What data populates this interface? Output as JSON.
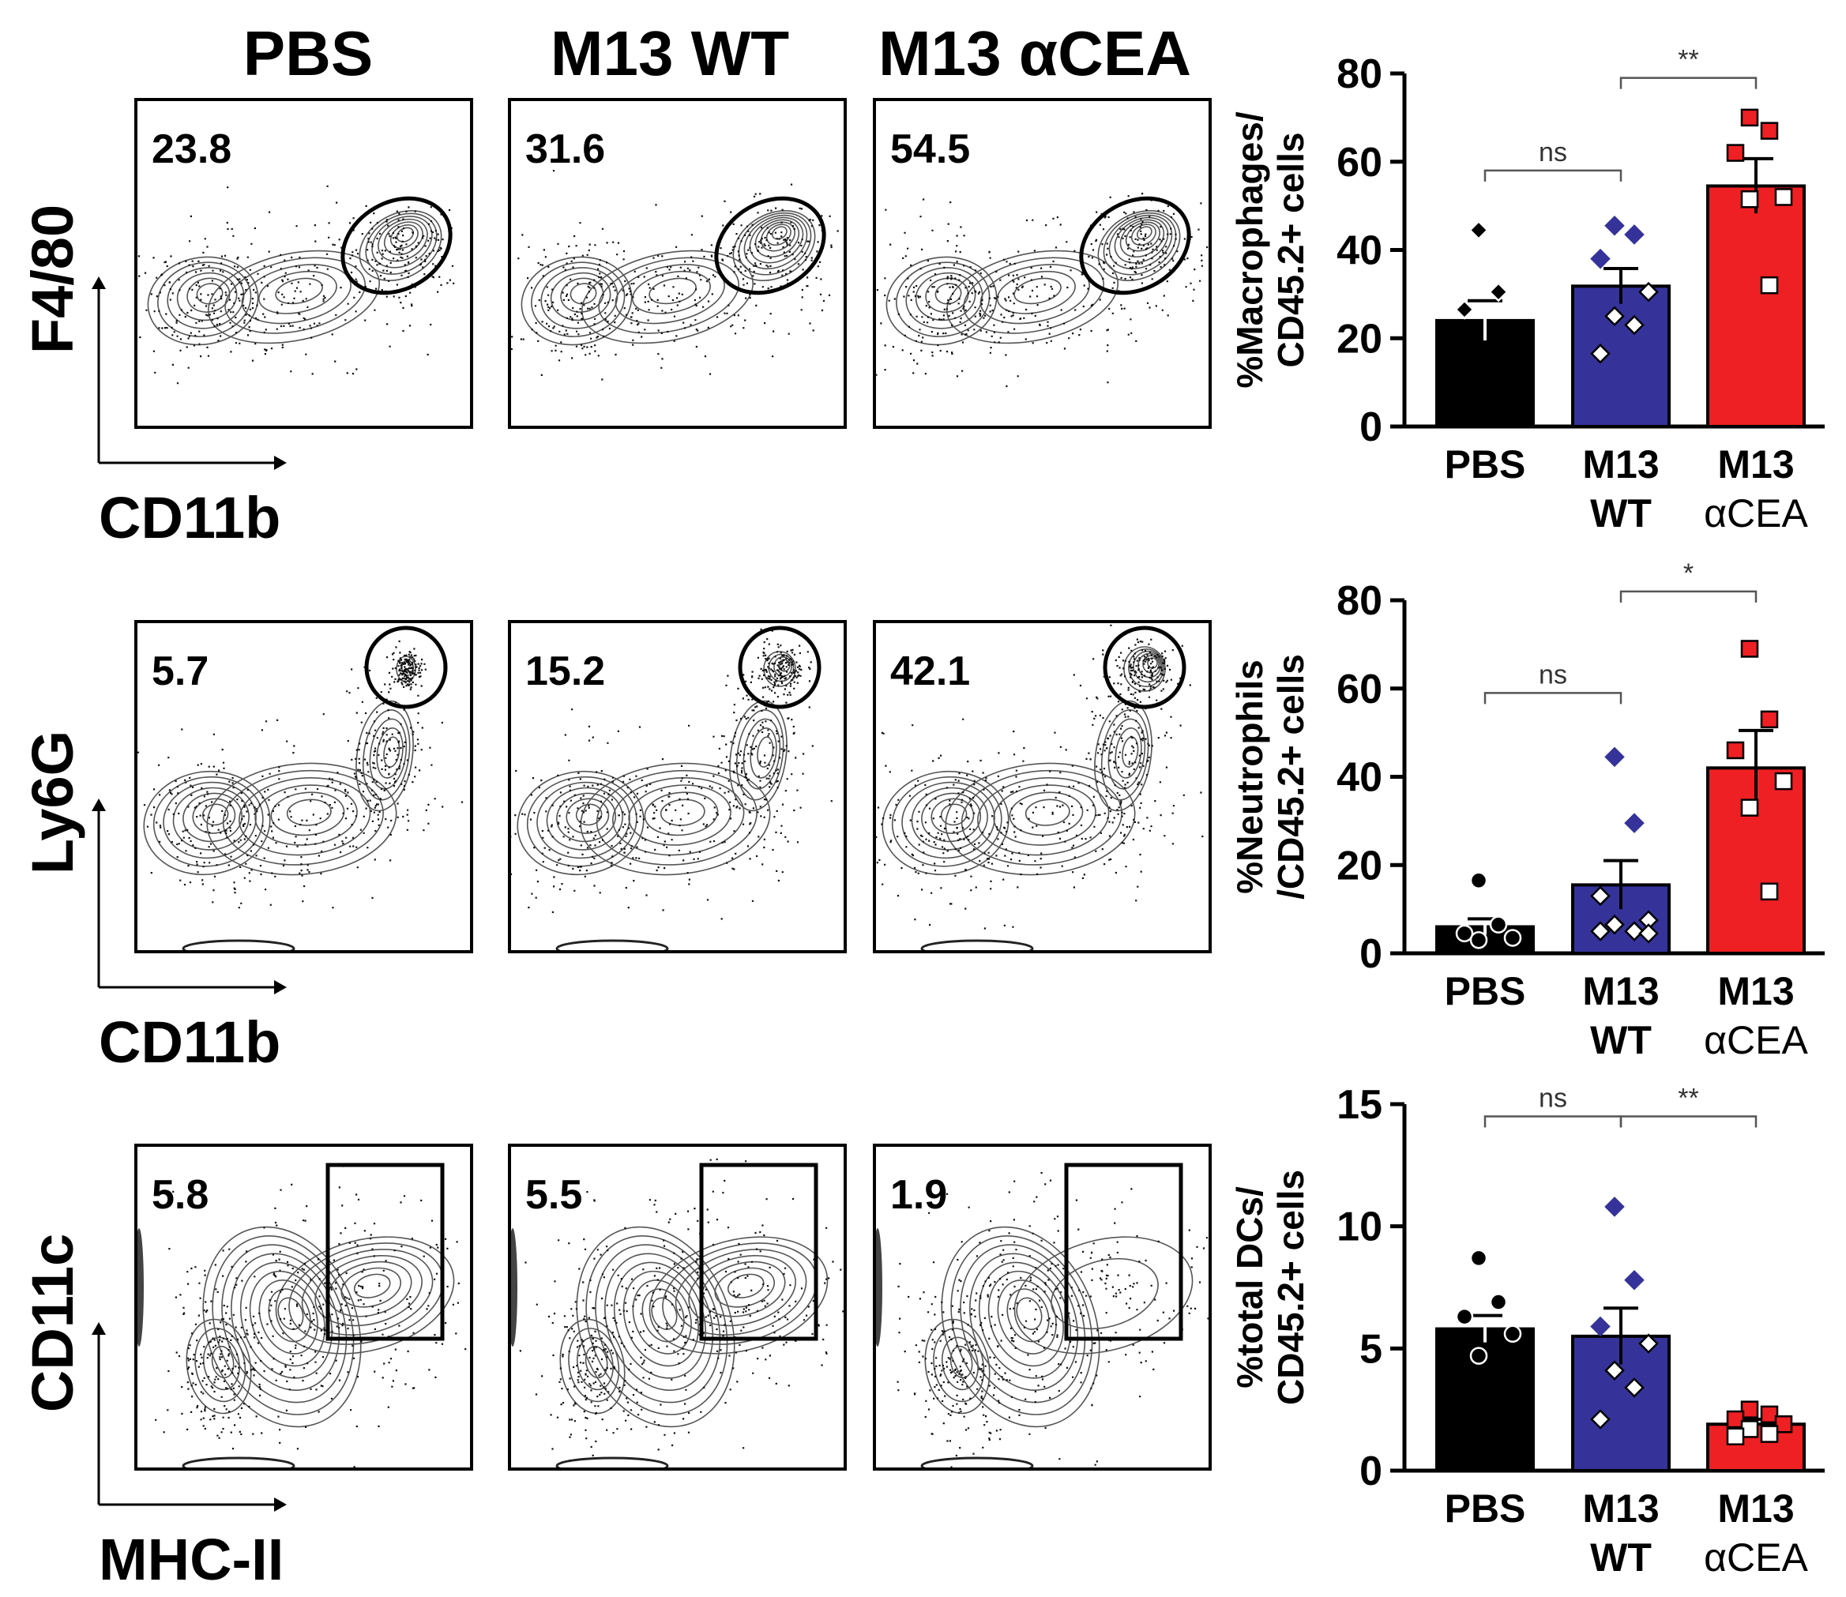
{
  "column_headers": [
    "PBS",
    "M13 WT",
    "M13 αCEA"
  ],
  "flow_rows": [
    {
      "y_marker": "F4/80",
      "x_marker": "CD11b",
      "gate": "ellipse",
      "percentages": [
        "23.8",
        "31.6",
        "54.5"
      ]
    },
    {
      "y_marker": "Ly6G",
      "x_marker": "CD11b",
      "gate": "circle",
      "percentages": [
        "5.7",
        "15.2",
        "42.1"
      ]
    },
    {
      "y_marker": "CD11c",
      "x_marker": "MHC-II",
      "gate": "rectangle",
      "percentages": [
        "5.8",
        "5.5",
        "1.9"
      ]
    }
  ],
  "colors": {
    "PBS": "#000000",
    "M13 WT": "#35339a",
    "M13 aCEA": "#ee2024"
  },
  "chart_data": [
    {
      "type": "bar",
      "ylabel_lines": [
        "%Macrophages/",
        "CD45.2+ cells"
      ],
      "categories": [
        [
          "PBS"
        ],
        [
          "M13",
          "WT"
        ],
        [
          "M13",
          "αCEA"
        ]
      ],
      "ylim": [
        0,
        80
      ],
      "yticks": [
        0,
        20,
        40,
        60,
        80
      ],
      "means": [
        24,
        31.8,
        54.5
      ],
      "sem": [
        4.5,
        4.0,
        6.2
      ],
      "points": [
        [
          44.5,
          30.5,
          26.5
        ],
        [
          45.5,
          43.5,
          38,
          30.5,
          25,
          23,
          16.5
        ],
        [
          70,
          67,
          62,
          52,
          51.5,
          32
        ]
      ],
      "markers": [
        "diamond",
        "diamond",
        "square"
      ],
      "comparisons": [
        {
          "from": 0,
          "to": 1,
          "label": "ns",
          "y": 58
        },
        {
          "from": 1,
          "to": 2,
          "label": "**",
          "y": 79
        }
      ]
    },
    {
      "type": "bar",
      "ylabel_lines": [
        "%Neutrophils",
        "/CD45.2+ cells"
      ],
      "categories": [
        [
          "PBS"
        ],
        [
          "M13",
          "WT"
        ],
        [
          "M13",
          "αCEA"
        ]
      ],
      "ylim": [
        0,
        80
      ],
      "yticks": [
        0,
        20,
        40,
        60,
        80
      ],
      "means": [
        6,
        15.5,
        42
      ],
      "sem": [
        1.8,
        5.5,
        8.5
      ],
      "points": [
        [
          16.5,
          6.5,
          4.5,
          3.5,
          3
        ],
        [
          44.5,
          29.5,
          13,
          7.5,
          6.5,
          5,
          5,
          4.5
        ],
        [
          69,
          53,
          46,
          39,
          33,
          14
        ]
      ],
      "markers": [
        "circle",
        "diamond",
        "square"
      ],
      "comparisons": [
        {
          "from": 0,
          "to": 1,
          "label": "ns",
          "y": 59
        },
        {
          "from": 1,
          "to": 2,
          "label": "*",
          "y": 82
        }
      ]
    },
    {
      "type": "bar",
      "ylabel_lines": [
        "%total DCs/",
        "CD45.2+ cells"
      ],
      "categories": [
        [
          "PBS"
        ],
        [
          "M13",
          "WT"
        ],
        [
          "M13",
          "αCEA"
        ]
      ],
      "ylim": [
        0,
        15
      ],
      "yticks": [
        0,
        5,
        10,
        15
      ],
      "means": [
        5.8,
        5.5,
        1.9
      ],
      "sem": [
        0.55,
        1.15,
        0.2
      ],
      "points": [
        [
          8.7,
          6.9,
          6.3,
          5.6,
          4.7
        ],
        [
          10.8,
          7.8,
          5.9,
          5.2,
          4.1,
          3.4,
          2.1
        ],
        [
          2.5,
          2.3,
          2.1,
          1.9,
          1.7,
          1.5,
          1.4
        ]
      ],
      "markers": [
        "circle",
        "diamond",
        "square"
      ],
      "comparisons": [
        {
          "from": 0,
          "to": 1,
          "label": "ns",
          "y": 14.5
        },
        {
          "from": 1,
          "to": 2,
          "label": "**",
          "y": 14.5
        }
      ]
    }
  ]
}
